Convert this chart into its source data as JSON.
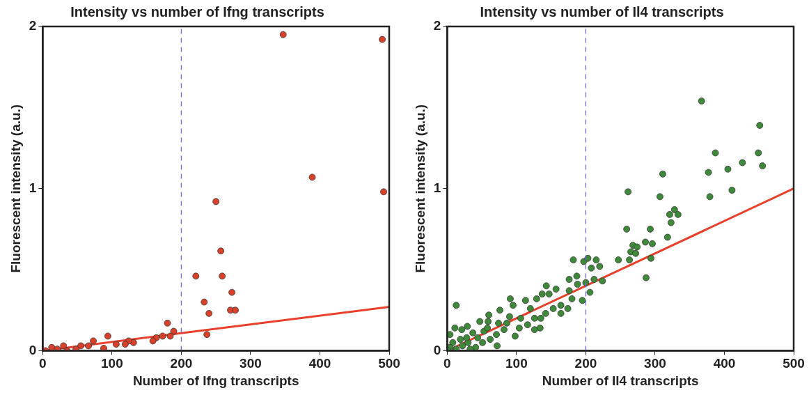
{
  "chart_data": [
    {
      "type": "scatter",
      "title": "Intensity vs number of Ifng transcripts",
      "xlabel": "Number of Ifng transcripts",
      "ylabel": "Fluorescent intensity (a.u.)",
      "xlim": [
        0,
        500
      ],
      "xticks": [
        0,
        100,
        200,
        300,
        400,
        500
      ],
      "ylim": [
        0,
        2
      ],
      "yticks": [
        0,
        1,
        2
      ],
      "grid": false,
      "legend": false,
      "series": [
        {
          "marker": "circle",
          "color": "#d9412b",
          "x": [
            347,
            389,
            250,
            257,
            221,
            259,
            273,
            233,
            240,
            271,
            278,
            237,
            180,
            189,
            184,
            173,
            164,
            159,
            94,
            73,
            66,
            131,
            124,
            119,
            106,
            88,
            55,
            30,
            13,
            35,
            4,
            21,
            48,
            490,
            492
          ],
          "values": [
            1.95,
            1.07,
            0.92,
            0.615,
            0.46,
            0.46,
            0.36,
            0.3,
            0.23,
            0.25,
            0.25,
            0.1,
            0.17,
            0.12,
            0.09,
            0.09,
            0.08,
            0.06,
            0.09,
            0.06,
            0.03,
            0.05,
            0.06,
            0.04,
            0.04,
            0.015,
            0.03,
            0.03,
            0.02,
            0,
            0,
            0.01,
            0.01,
            1.92,
            0.98
          ]
        },
        {
          "type": "line",
          "marker": "none",
          "color": "#e8402a",
          "x": [
            0,
            500
          ],
          "values": [
            0,
            0.27
          ]
        }
      ],
      "ref_lines": [
        {
          "axis": "x",
          "value": 200,
          "color": "#6a6ae8",
          "line_style": "dashed"
        }
      ]
    },
    {
      "type": "scatter",
      "title": "Intensity vs number of Il4 transcripts",
      "xlabel": "Number of Il4 transcripts",
      "ylabel": "Fluorescent intensity (a.u.)",
      "xlim": [
        0,
        500
      ],
      "xticks": [
        0,
        100,
        200,
        300,
        400,
        500
      ],
      "ylim": [
        0,
        2
      ],
      "yticks": [
        0,
        1,
        2
      ],
      "grid": false,
      "legend": false,
      "series": [
        {
          "marker": "circle",
          "color": "#3f8a3a",
          "x": [
            367,
            451,
            449,
            387,
            426,
            455,
            405,
            377,
            311,
            261,
            411,
            379,
            307,
            328,
            321,
            333,
            323,
            259,
            293,
            318,
            286,
            296,
            268,
            274,
            265,
            272,
            247,
            263,
            294,
            182,
            197,
            203,
            215,
            208,
            220,
            287,
            176,
            187,
            188,
            200,
            212,
            224,
            206,
            195,
            176,
            180,
            174,
            164,
            157,
            143,
            137,
            129,
            147,
            153,
            142,
            164,
            135,
            126,
            120,
            113,
            91,
            95,
            76,
            90,
            106,
            116,
            104,
            126,
            134,
            98,
            60,
            59,
            47,
            29,
            74,
            82,
            71,
            72,
            13,
            11,
            21,
            4,
            37,
            53,
            62,
            51,
            30,
            19,
            8,
            4,
            22,
            41,
            13,
            33,
            1,
            44,
            28,
            58,
            86
          ],
          "values": [
            1.54,
            1.39,
            1.22,
            1.22,
            1.16,
            1.14,
            1.12,
            1.1,
            1.09,
            0.98,
            0.99,
            0.95,
            0.95,
            0.87,
            0.84,
            0.84,
            0.79,
            0.75,
            0.75,
            0.7,
            0.67,
            0.66,
            0.65,
            0.64,
            0.61,
            0.6,
            0.56,
            0.56,
            0.57,
            0.56,
            0.55,
            0.57,
            0.56,
            0.51,
            0.52,
            0.45,
            0.44,
            0.46,
            0.41,
            0.42,
            0.44,
            0.43,
            0.36,
            0.31,
            0.37,
            0.32,
            0.26,
            0.28,
            0.38,
            0.4,
            0.35,
            0.32,
            0.35,
            0.26,
            0.23,
            0.23,
            0.2,
            0.2,
            0.26,
            0.31,
            0.32,
            0.28,
            0.25,
            0.21,
            0.2,
            0.16,
            0.14,
            0.13,
            0.14,
            0.09,
            0.22,
            0.18,
            0.18,
            0.15,
            0.17,
            0.13,
            0.1,
            0.03,
            0.28,
            0.14,
            0.13,
            0.1,
            0.11,
            0.12,
            0.07,
            0.05,
            0.05,
            0.07,
            0.05,
            0.02,
            0.03,
            0.02,
            0.01,
            0.01,
            0,
            0.08,
            0.08,
            0.14,
            0.17
          ]
        },
        {
          "type": "line",
          "marker": "none",
          "color": "#e8402a",
          "x": [
            0,
            500
          ],
          "values": [
            0,
            1.0
          ]
        }
      ],
      "ref_lines": [
        {
          "axis": "x",
          "value": 200,
          "color": "#6a6ae8",
          "line_style": "dashed"
        }
      ]
    }
  ]
}
